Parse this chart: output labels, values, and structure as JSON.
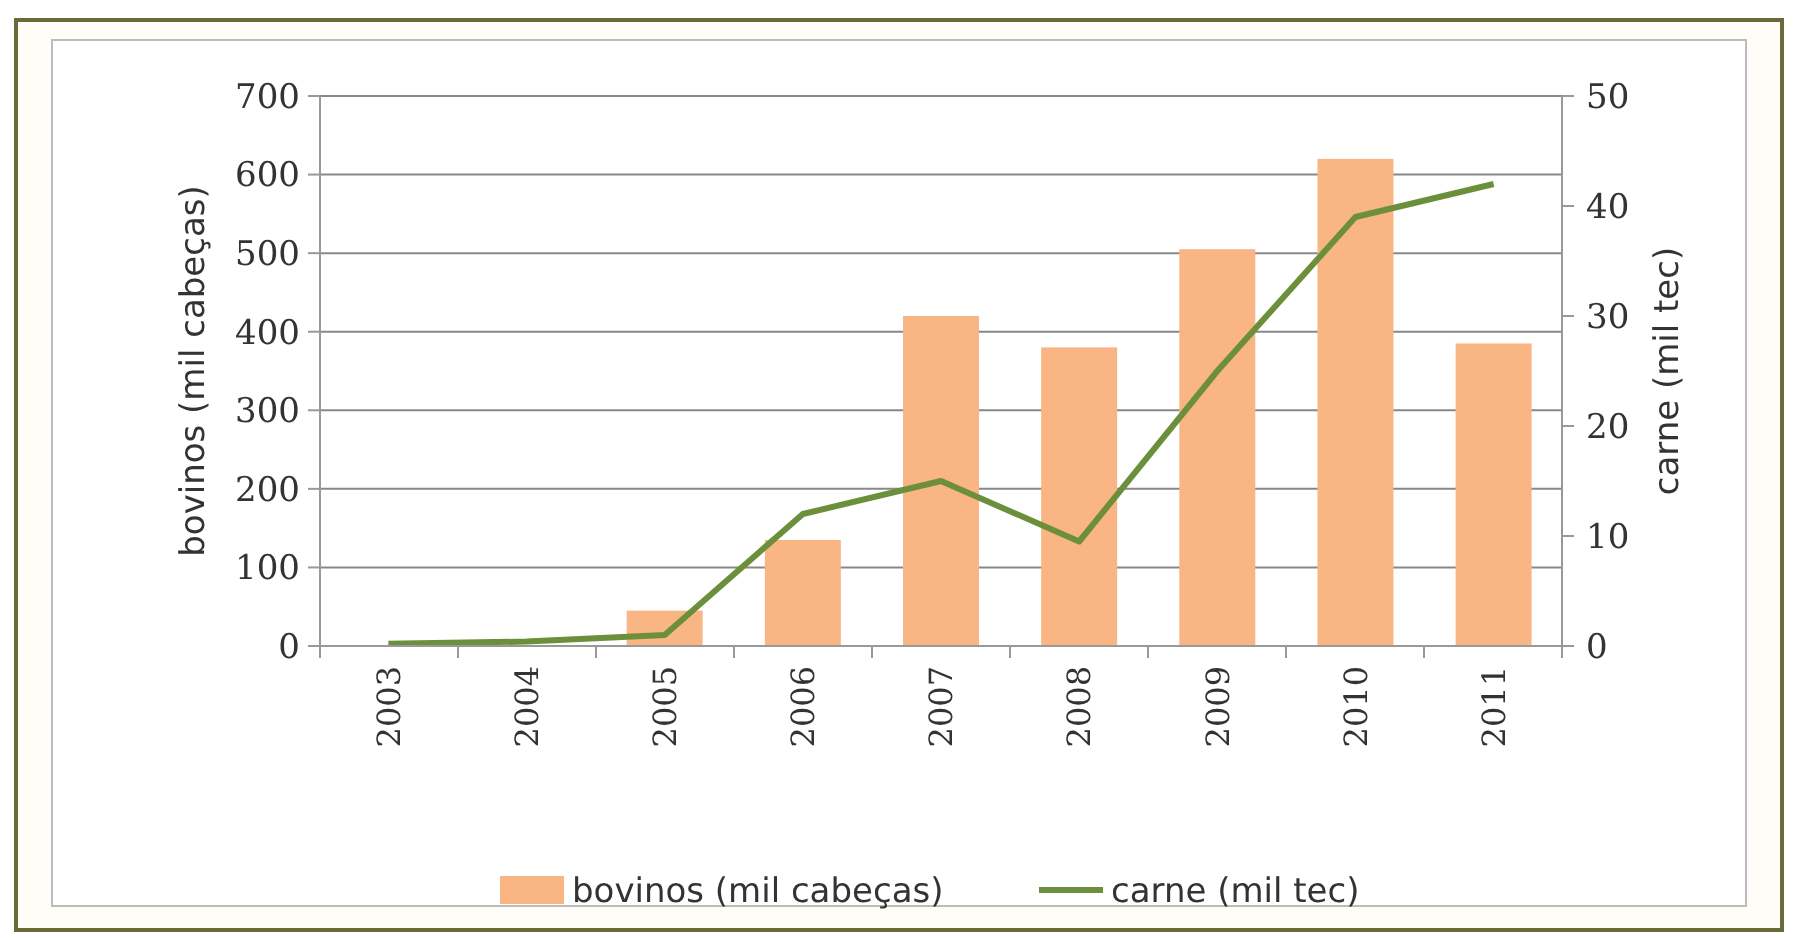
{
  "chart_data": {
    "type": "bar",
    "categories": [
      "2003",
      "2004",
      "2005",
      "2006",
      "2007",
      "2008",
      "2009",
      "2010",
      "2011"
    ],
    "series": [
      {
        "name": "bovinos (mil cabeças)",
        "color": "#f9b583",
        "values": [
          null,
          null,
          45,
          135,
          420,
          380,
          505,
          620,
          385
        ]
      },
      {
        "name": "carne (mil tec)",
        "type": "line",
        "axis": "y2",
        "color": "#6b8f3a",
        "values": [
          0.2,
          0.4,
          1,
          12,
          15,
          9.5,
          25,
          39,
          42
        ]
      }
    ],
    "ylabel": "bovinos (mil cabeças)",
    "y2label": "carne (mil tec)",
    "ylim": [
      0,
      700
    ],
    "yticks": [
      0,
      100,
      200,
      300,
      400,
      500,
      600,
      700
    ],
    "y2lim": [
      0,
      50
    ],
    "y2ticks": [
      0,
      10,
      20,
      30,
      40,
      50
    ],
    "grid": "y",
    "legend": "bottom",
    "marker": "none",
    "line_style": "solid"
  }
}
